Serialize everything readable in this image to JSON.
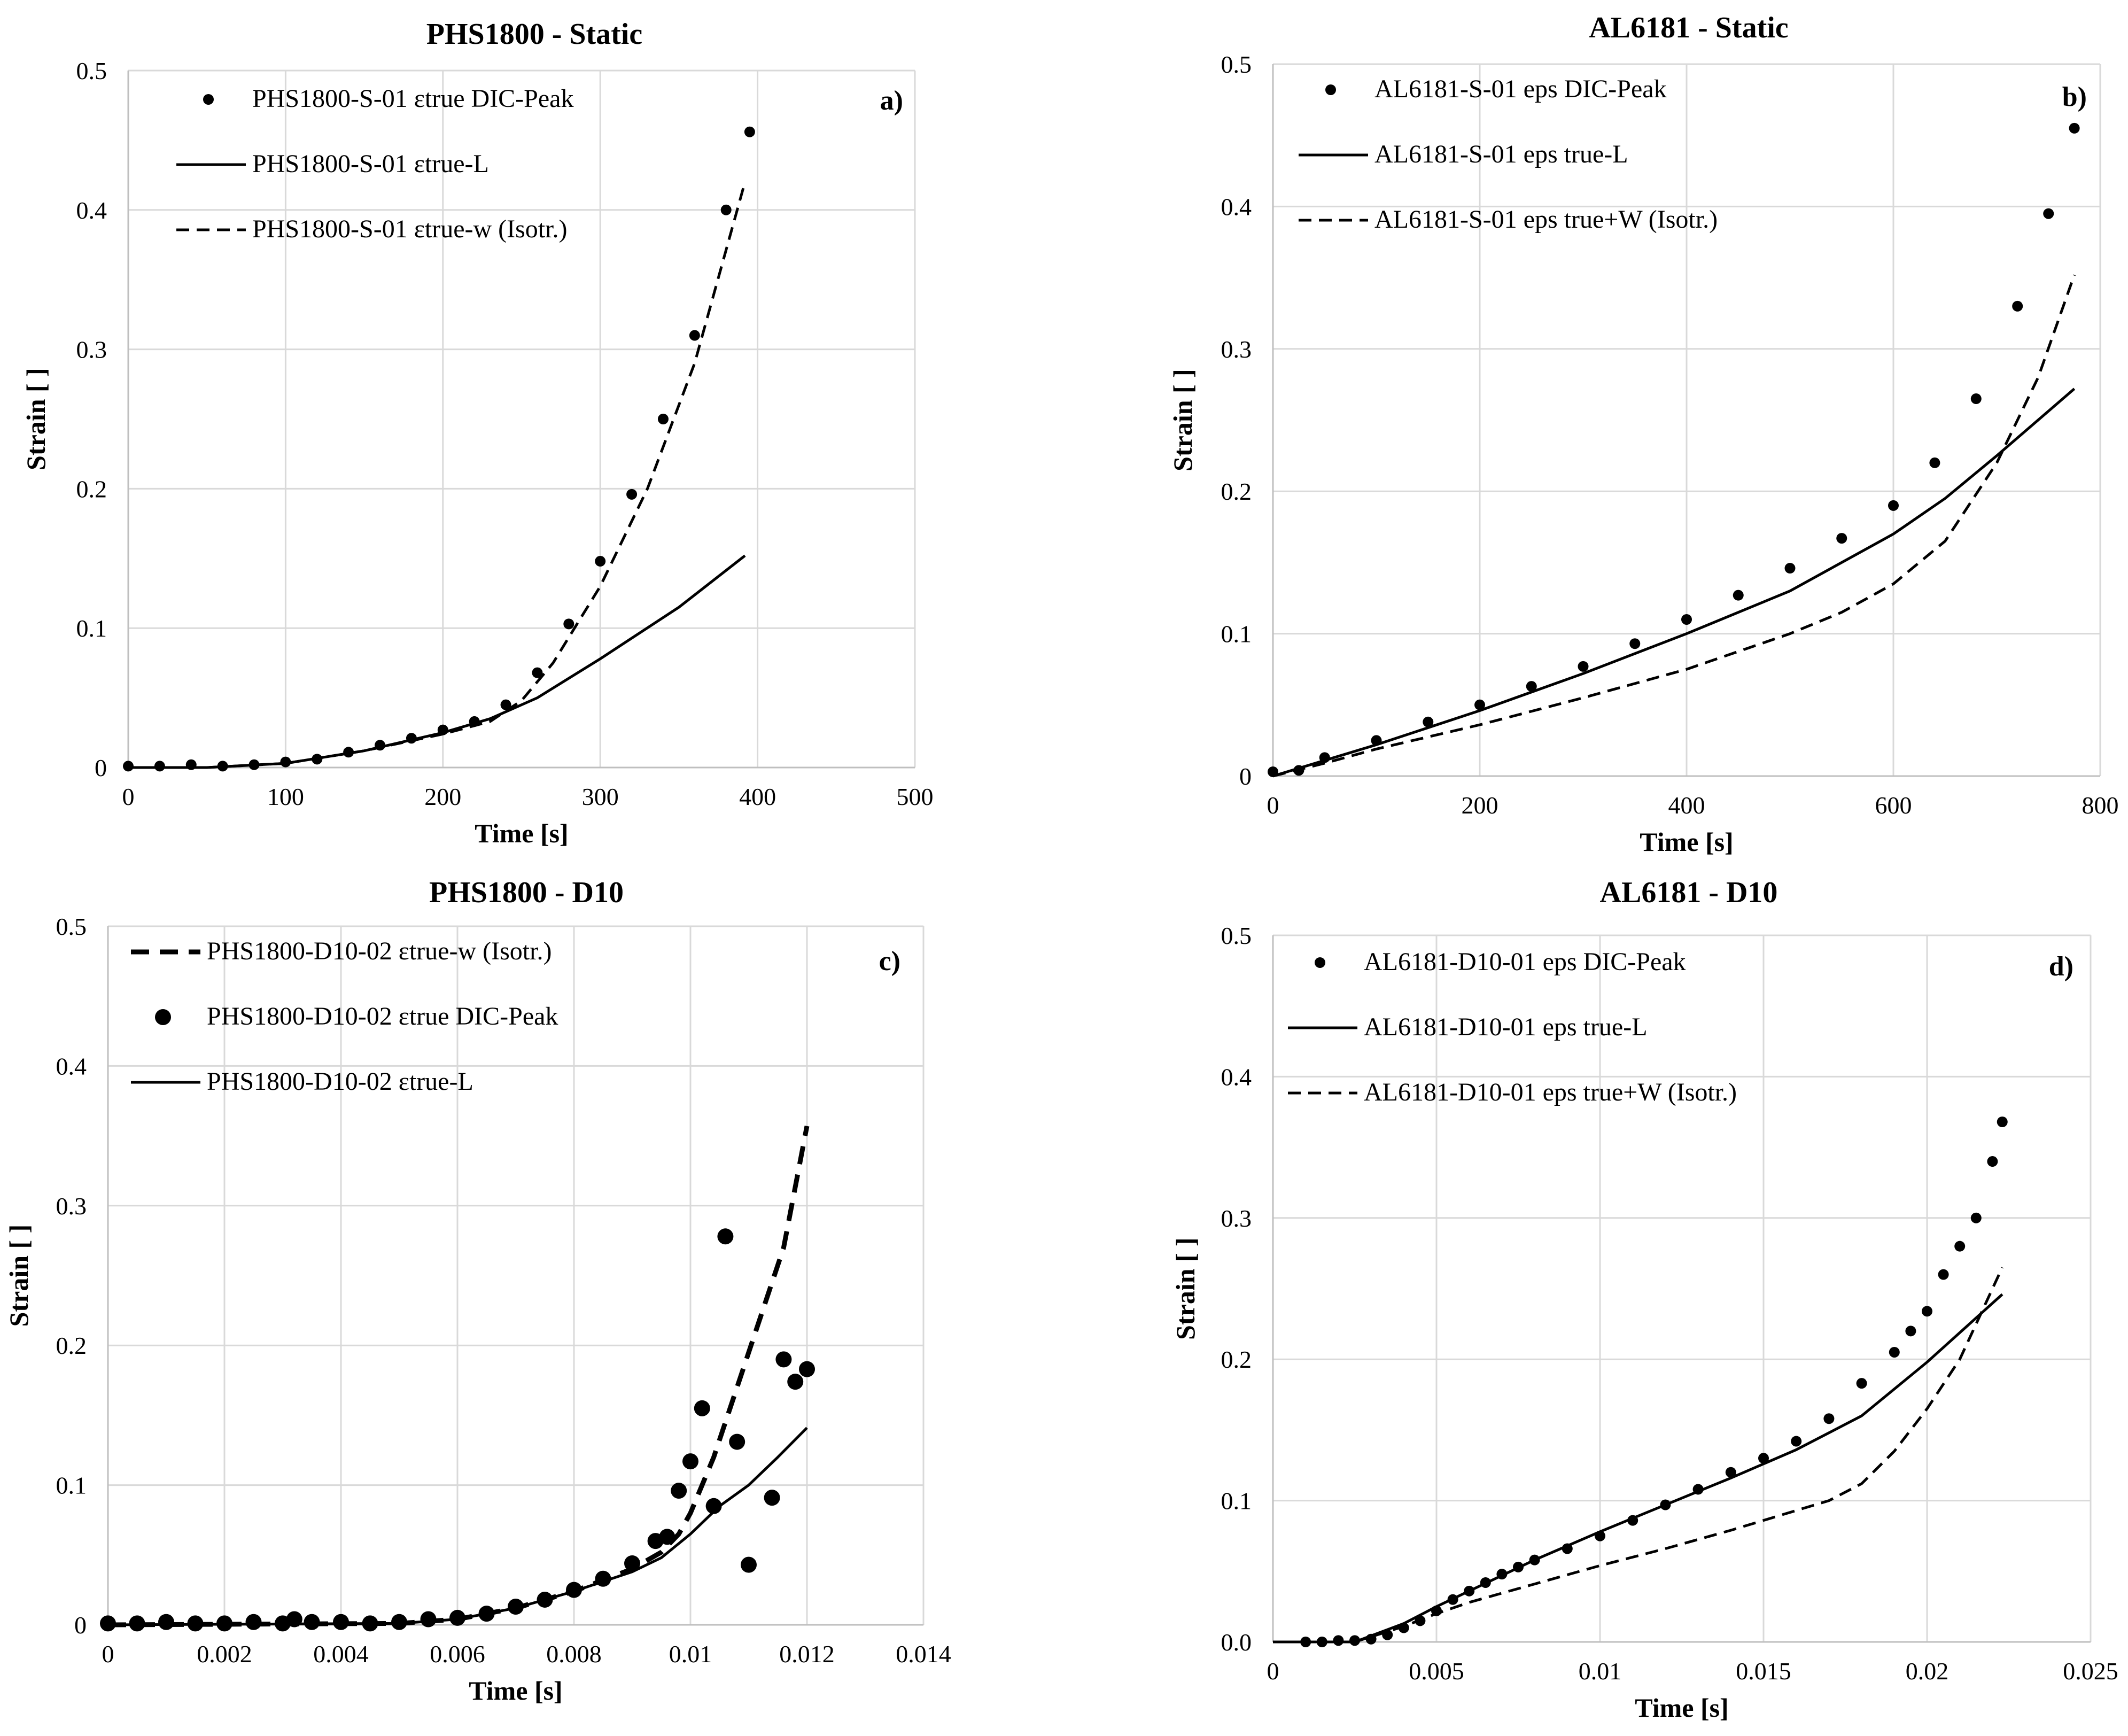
{
  "chart_data": [
    {
      "type": "scatter",
      "panel": "a)",
      "title": "PHS1800 - Static",
      "xlabel": "Time [s]",
      "ylabel": "Strain [ ]",
      "xlim": [
        0,
        500
      ],
      "ylim": [
        0,
        0.5
      ],
      "xticks": [
        0,
        100,
        200,
        300,
        400,
        500
      ],
      "yticks": [
        0,
        0.1,
        0.2,
        0.3,
        0.4,
        0.5
      ],
      "xtick_labels": [
        "0",
        "100",
        "200",
        "300",
        "400",
        "500"
      ],
      "ytick_labels": [
        "0",
        "0.1",
        "0.2",
        "0.3",
        "0.4",
        "0.5"
      ],
      "series": [
        {
          "name": "PHS1800-S-01 εtrue DIC-Peak",
          "style": "dots",
          "points": [
            [
              0,
              0.001
            ],
            [
              20,
              0.001
            ],
            [
              40,
              0.002
            ],
            [
              60,
              0.001
            ],
            [
              80,
              0.002
            ],
            [
              100,
              0.004
            ],
            [
              120,
              0.006
            ],
            [
              140,
              0.011
            ],
            [
              160,
              0.016
            ],
            [
              180,
              0.021
            ],
            [
              200,
              0.027
            ],
            [
              220,
              0.033
            ],
            [
              240,
              0.045
            ],
            [
              260,
              0.068
            ],
            [
              280,
              0.103
            ],
            [
              300,
              0.148
            ],
            [
              320,
              0.196
            ],
            [
              340,
              0.25
            ],
            [
              360,
              0.31
            ],
            [
              380,
              0.4
            ],
            [
              395,
              0.456
            ]
          ]
        },
        {
          "name": "PHS1800-S-01 εtrue-L",
          "style": "solid",
          "points": [
            [
              0,
              0
            ],
            [
              50,
              0
            ],
            [
              100,
              0.003
            ],
            [
              150,
              0.012
            ],
            [
              200,
              0.025
            ],
            [
              230,
              0.035
            ],
            [
              260,
              0.05
            ],
            [
              300,
              0.078
            ],
            [
              350,
              0.115
            ],
            [
              392,
              0.152
            ]
          ]
        },
        {
          "name": "PHS1800-S-01 εtrue-w (Isotr.)",
          "style": "dashed",
          "points": [
            [
              0,
              0
            ],
            [
              50,
              0
            ],
            [
              100,
              0.003
            ],
            [
              150,
              0.012
            ],
            [
              200,
              0.024
            ],
            [
              230,
              0.033
            ],
            [
              250,
              0.048
            ],
            [
              270,
              0.075
            ],
            [
              300,
              0.13
            ],
            [
              330,
              0.2
            ],
            [
              360,
              0.29
            ],
            [
              392,
              0.42
            ]
          ]
        }
      ],
      "legend": "top-left"
    },
    {
      "type": "scatter",
      "panel": "b)",
      "title": "AL6181 - Static",
      "xlabel": "Time [s]",
      "ylabel": "Strain [ ]",
      "xlim": [
        0,
        800
      ],
      "ylim": [
        0,
        0.5
      ],
      "xticks": [
        0,
        200,
        400,
        600,
        800
      ],
      "yticks": [
        0,
        0.1,
        0.2,
        0.3,
        0.4,
        0.5
      ],
      "xtick_labels": [
        "0",
        "200",
        "400",
        "600",
        "800"
      ],
      "ytick_labels": [
        "0",
        "0.1",
        "0.2",
        "0.3",
        "0.4",
        "0.5"
      ],
      "series": [
        {
          "name": "AL6181-S-01 eps DIC-Peak",
          "style": "dots",
          "points": [
            [
              0,
              0.003
            ],
            [
              25,
              0.004
            ],
            [
              50,
              0.013
            ],
            [
              100,
              0.025
            ],
            [
              150,
              0.038
            ],
            [
              200,
              0.05
            ],
            [
              250,
              0.063
            ],
            [
              300,
              0.077
            ],
            [
              350,
              0.093
            ],
            [
              400,
              0.11
            ],
            [
              450,
              0.127
            ],
            [
              500,
              0.146
            ],
            [
              550,
              0.167
            ],
            [
              600,
              0.19
            ],
            [
              640,
              0.22
            ],
            [
              680,
              0.265
            ],
            [
              720,
              0.33
            ],
            [
              750,
              0.395
            ],
            [
              775,
              0.455
            ]
          ]
        },
        {
          "name": "AL6181-S-01 eps true-L",
          "style": "solid",
          "points": [
            [
              0,
              0
            ],
            [
              50,
              0.011
            ],
            [
              100,
              0.022
            ],
            [
              200,
              0.046
            ],
            [
              300,
              0.072
            ],
            [
              400,
              0.1
            ],
            [
              500,
              0.13
            ],
            [
              600,
              0.17
            ],
            [
              650,
              0.195
            ],
            [
              700,
              0.225
            ],
            [
              775,
              0.272
            ]
          ]
        },
        {
          "name": "AL6181-S-01 eps true+W (Isotr.)",
          "style": "dashed",
          "points": [
            [
              0,
              0
            ],
            [
              50,
              0.009
            ],
            [
              100,
              0.019
            ],
            [
              200,
              0.036
            ],
            [
              300,
              0.055
            ],
            [
              400,
              0.075
            ],
            [
              500,
              0.1
            ],
            [
              550,
              0.115
            ],
            [
              600,
              0.135
            ],
            [
              650,
              0.165
            ],
            [
              700,
              0.22
            ],
            [
              740,
              0.28
            ],
            [
              775,
              0.352
            ]
          ]
        }
      ],
      "legend": "top-left"
    },
    {
      "type": "scatter",
      "panel": "c)",
      "title": "PHS1800 - D10",
      "xlabel": "Time [s]",
      "ylabel": "Strain [ ]",
      "xlim": [
        0,
        0.014
      ],
      "ylim": [
        0,
        0.5
      ],
      "xticks": [
        0,
        0.002,
        0.004,
        0.006,
        0.008,
        0.01,
        0.012,
        0.014
      ],
      "yticks": [
        0,
        0.1,
        0.2,
        0.3,
        0.4,
        0.5
      ],
      "xtick_labels": [
        "0",
        "0.002",
        "0.004",
        "0.006",
        "0.008",
        "0.01",
        "0.012",
        "0.014"
      ],
      "ytick_labels": [
        "0",
        "0.1",
        "0.2",
        "0.3",
        "0.4",
        "0.5"
      ],
      "series": [
        {
          "name": "PHS1800-D10-02 εtrue-w (Isotr.)",
          "style": "dashed-bold",
          "points": [
            [
              0,
              0
            ],
            [
              0.005,
              0.001
            ],
            [
              0.006,
              0.004
            ],
            [
              0.007,
              0.012
            ],
            [
              0.008,
              0.024
            ],
            [
              0.009,
              0.04
            ],
            [
              0.0095,
              0.052
            ],
            [
              0.0098,
              0.065
            ],
            [
              0.01,
              0.08
            ],
            [
              0.0104,
              0.12
            ],
            [
              0.0108,
              0.17
            ],
            [
              0.0112,
              0.22
            ],
            [
              0.0116,
              0.27
            ],
            [
              0.012,
              0.357
            ]
          ]
        },
        {
          "name": "PHS1800-D10-02 εtrue DIC-Peak",
          "style": "dots-large",
          "points": [
            [
              0,
              0.001
            ],
            [
              0.0005,
              0.001
            ],
            [
              0.001,
              0.002
            ],
            [
              0.0015,
              0.001
            ],
            [
              0.002,
              0.001
            ],
            [
              0.0025,
              0.002
            ],
            [
              0.003,
              0.001
            ],
            [
              0.0032,
              0.004
            ],
            [
              0.0035,
              0.002
            ],
            [
              0.004,
              0.002
            ],
            [
              0.0045,
              0.001
            ],
            [
              0.005,
              0.002
            ],
            [
              0.0055,
              0.004
            ],
            [
              0.006,
              0.005
            ],
            [
              0.0065,
              0.008
            ],
            [
              0.007,
              0.013
            ],
            [
              0.0075,
              0.018
            ],
            [
              0.008,
              0.025
            ],
            [
              0.0085,
              0.033
            ],
            [
              0.009,
              0.044
            ],
            [
              0.0094,
              0.06
            ],
            [
              0.0096,
              0.063
            ],
            [
              0.0098,
              0.096
            ],
            [
              0.01,
              0.117
            ],
            [
              0.0102,
              0.155
            ],
            [
              0.0104,
              0.085
            ],
            [
              0.0106,
              0.278
            ],
            [
              0.0108,
              0.131
            ],
            [
              0.011,
              0.043
            ],
            [
              0.0114,
              0.091
            ],
            [
              0.0116,
              0.19
            ],
            [
              0.0118,
              0.174
            ],
            [
              0.012,
              0.183
            ]
          ]
        },
        {
          "name": "PHS1800-D10-02 εtrue-L",
          "style": "solid",
          "points": [
            [
              0,
              0
            ],
            [
              0.005,
              0.001
            ],
            [
              0.006,
              0.004
            ],
            [
              0.007,
              0.012
            ],
            [
              0.008,
              0.024
            ],
            [
              0.009,
              0.038
            ],
            [
              0.0095,
              0.048
            ],
            [
              0.01,
              0.065
            ],
            [
              0.0105,
              0.085
            ],
            [
              0.011,
              0.1
            ],
            [
              0.0115,
              0.12
            ],
            [
              0.012,
              0.141
            ]
          ]
        }
      ],
      "legend": "top-left"
    },
    {
      "type": "scatter",
      "panel": "d)",
      "title": "AL6181 - D10",
      "xlabel": "Time [s]",
      "ylabel": "Strain [ ]",
      "xlim": [
        0,
        0.025
      ],
      "ylim": [
        0,
        0.5
      ],
      "xticks": [
        0,
        0.005,
        0.01,
        0.015,
        0.02,
        0.025
      ],
      "yticks": [
        0,
        0.1,
        0.2,
        0.3,
        0.4,
        0.5
      ],
      "xtick_labels": [
        "0",
        "0.005",
        "0.01",
        "0.015",
        "0.02",
        "0.025"
      ],
      "ytick_labels": [
        "0.0",
        "0.1",
        "0.2",
        "0.3",
        "0.4",
        "0.5"
      ],
      "series": [
        {
          "name": "AL6181-D10-01 eps DIC-Peak",
          "style": "dots",
          "points": [
            [
              0.001,
              0
            ],
            [
              0.0015,
              0
            ],
            [
              0.002,
              0.001
            ],
            [
              0.0025,
              0.001
            ],
            [
              0.003,
              0.002
            ],
            [
              0.0035,
              0.005
            ],
            [
              0.004,
              0.01
            ],
            [
              0.0045,
              0.015
            ],
            [
              0.005,
              0.022
            ],
            [
              0.0055,
              0.03
            ],
            [
              0.006,
              0.036
            ],
            [
              0.0065,
              0.042
            ],
            [
              0.007,
              0.048
            ],
            [
              0.0075,
              0.053
            ],
            [
              0.008,
              0.058
            ],
            [
              0.009,
              0.066
            ],
            [
              0.01,
              0.075
            ],
            [
              0.011,
              0.086
            ],
            [
              0.012,
              0.097
            ],
            [
              0.013,
              0.108
            ],
            [
              0.014,
              0.12
            ],
            [
              0.015,
              0.13
            ],
            [
              0.016,
              0.142
            ],
            [
              0.017,
              0.158
            ],
            [
              0.018,
              0.183
            ],
            [
              0.019,
              0.205
            ],
            [
              0.0195,
              0.22
            ],
            [
              0.02,
              0.234
            ],
            [
              0.0205,
              0.26
            ],
            [
              0.021,
              0.28
            ],
            [
              0.0215,
              0.3
            ],
            [
              0.022,
              0.34
            ],
            [
              0.0223,
              0.368
            ]
          ]
        },
        {
          "name": "AL6181-D10-01 eps true-L",
          "style": "solid",
          "points": [
            [
              0,
              0
            ],
            [
              0.0025,
              0
            ],
            [
              0.004,
              0.013
            ],
            [
              0.005,
              0.025
            ],
            [
              0.006,
              0.036
            ],
            [
              0.008,
              0.058
            ],
            [
              0.01,
              0.078
            ],
            [
              0.012,
              0.097
            ],
            [
              0.014,
              0.116
            ],
            [
              0.016,
              0.136
            ],
            [
              0.018,
              0.16
            ],
            [
              0.02,
              0.198
            ],
            [
              0.0223,
              0.246
            ]
          ]
        },
        {
          "name": "AL6181-D10-01 eps true+W (Isotr.)",
          "style": "dashed",
          "points": [
            [
              0,
              0
            ],
            [
              0.0025,
              0
            ],
            [
              0.004,
              0.011
            ],
            [
              0.005,
              0.02
            ],
            [
              0.006,
              0.028
            ],
            [
              0.008,
              0.041
            ],
            [
              0.01,
              0.054
            ],
            [
              0.012,
              0.066
            ],
            [
              0.014,
              0.079
            ],
            [
              0.016,
              0.093
            ],
            [
              0.017,
              0.1
            ],
            [
              0.018,
              0.112
            ],
            [
              0.019,
              0.135
            ],
            [
              0.02,
              0.165
            ],
            [
              0.021,
              0.2
            ],
            [
              0.0223,
              0.265
            ]
          ]
        }
      ],
      "legend": "top-left"
    }
  ]
}
